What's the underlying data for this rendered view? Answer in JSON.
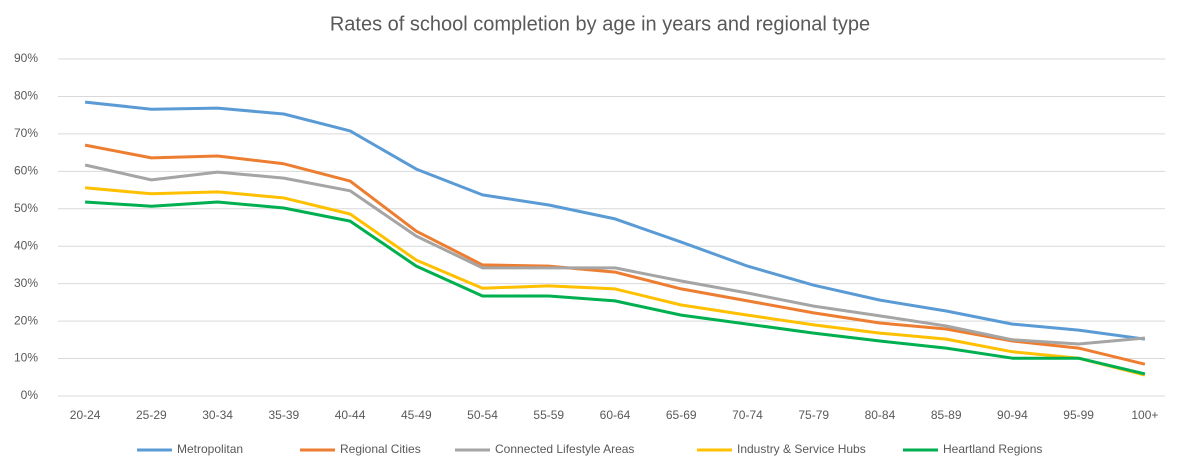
{
  "chart_data": {
    "type": "line",
    "title": "Rates of school completion by age in years and regional type",
    "categories": [
      "20-24",
      "25-29",
      "30-34",
      "35-39",
      "40-44",
      "45-49",
      "50-54",
      "55-59",
      "60-64",
      "65-69",
      "70-74",
      "75-79",
      "80-84",
      "85-89",
      "90-94",
      "95-99",
      "100+"
    ],
    "series": [
      {
        "name": "Metropolitan",
        "color": "#5b9bd5",
        "values": [
          78.5,
          76.6,
          76.9,
          75.3,
          70.8,
          60.6,
          53.7,
          51.0,
          47.3,
          41.1,
          34.7,
          29.6,
          25.6,
          22.7,
          19.2,
          17.6,
          15.2
        ]
      },
      {
        "name": "Regional Cities",
        "color": "#ed7d31",
        "values": [
          67.0,
          63.6,
          64.1,
          62.0,
          57.4,
          44.0,
          35.0,
          34.7,
          33.1,
          28.6,
          25.4,
          22.2,
          19.5,
          17.9,
          14.7,
          12.8,
          8.5
        ]
      },
      {
        "name": "Connected Lifestyle Areas",
        "color": "#a5a5a5",
        "values": [
          61.7,
          57.7,
          59.8,
          58.2,
          54.8,
          42.7,
          34.2,
          34.2,
          34.2,
          30.7,
          27.5,
          24.0,
          21.4,
          18.7,
          15.0,
          13.9,
          15.5
        ]
      },
      {
        "name": "Industry & Service Hubs",
        "color": "#ffc000",
        "values": [
          55.6,
          54.0,
          54.5,
          52.9,
          48.6,
          36.3,
          28.8,
          29.4,
          28.6,
          24.3,
          21.6,
          19.0,
          16.8,
          15.2,
          11.8,
          10.1,
          5.6
        ]
      },
      {
        "name": "Heartland Regions",
        "color": "#00b050",
        "values": [
          51.8,
          50.7,
          51.8,
          50.2,
          46.7,
          34.7,
          26.7,
          26.7,
          25.4,
          21.6,
          19.2,
          16.8,
          14.7,
          12.8,
          10.1,
          10.1,
          5.9
        ]
      }
    ],
    "ylim": [
      0,
      90
    ],
    "yticks": [
      {
        "value": 0,
        "label": "0%"
      },
      {
        "value": 10,
        "label": "10%"
      },
      {
        "value": 20,
        "label": "20%"
      },
      {
        "value": 30,
        "label": "30%"
      },
      {
        "value": 40,
        "label": "40%"
      },
      {
        "value": 50,
        "label": "50%"
      },
      {
        "value": 60,
        "label": "60%"
      },
      {
        "value": 70,
        "label": "70%"
      },
      {
        "value": 80,
        "label": "80%"
      },
      {
        "value": 90,
        "label": "90%"
      }
    ],
    "grid": true,
    "legend": "bottom"
  }
}
